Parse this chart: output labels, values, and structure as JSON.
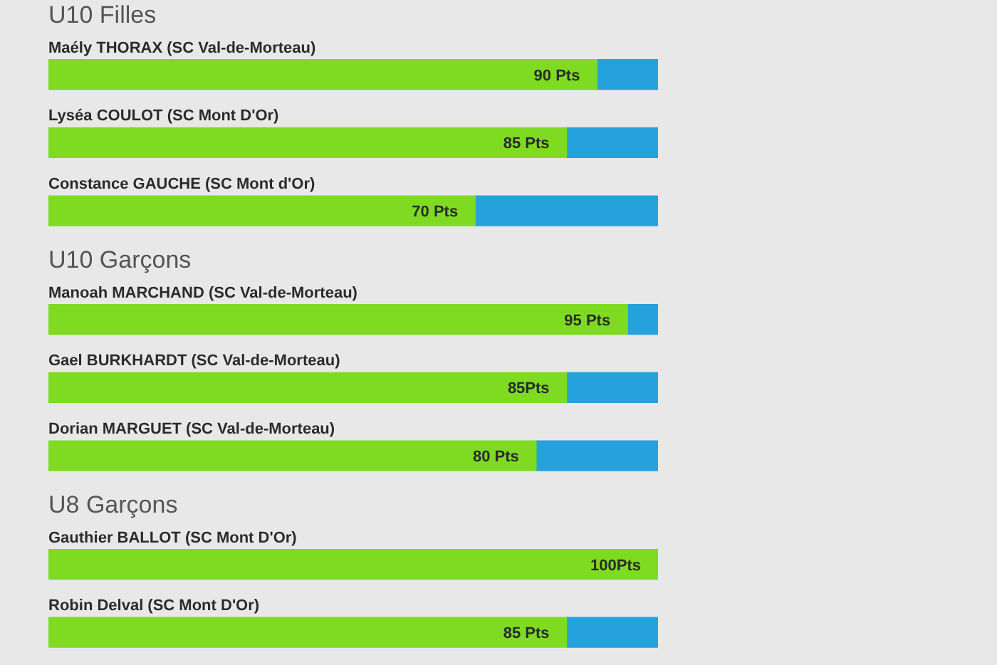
{
  "chart_data": [
    {
      "type": "bar",
      "title": "U10 Filles",
      "orientation": "horizontal",
      "stacked": true,
      "categories": [
        "Maély THORAX (SC Val-de-Morteau)",
        "Lyséa COULOT (SC Mont D'Or)",
        "Constance GAUCHE (SC Mont d'Or)"
      ],
      "series": [
        {
          "color": "#7edb22",
          "values": [
            90,
            85,
            70
          ],
          "value_labels": [
            "90 Pts",
            "85 Pts",
            "70 Pts"
          ]
        },
        {
          "color": "#25a1dc",
          "values": [
            10,
            15,
            30
          ]
        }
      ],
      "xlim": [
        0,
        100
      ],
      "tick_labels": "y"
    },
    {
      "type": "bar",
      "title": "U10 Garçons",
      "orientation": "horizontal",
      "stacked": true,
      "categories": [
        "Manoah MARCHAND (SC Val-de-Morteau)",
        "Gael BURKHARDT (SC Val-de-Morteau)",
        "Dorian MARGUET (SC Val-de-Morteau)"
      ],
      "series": [
        {
          "color": "#7edb22",
          "values": [
            95,
            85,
            80
          ],
          "value_labels": [
            "95 Pts",
            "85Pts",
            "80 Pts"
          ]
        },
        {
          "color": "#25a1dc",
          "values": [
            5,
            15,
            20
          ]
        }
      ],
      "xlim": [
        0,
        100
      ],
      "tick_labels": "y"
    },
    {
      "type": "bar",
      "title": "U8 Garçons",
      "orientation": "horizontal",
      "stacked": true,
      "categories": [
        "Gauthier BALLOT (SC Mont D'Or)",
        "Robin Delval (SC Mont D'Or)"
      ],
      "series": [
        {
          "color": "#7edb22",
          "values": [
            100,
            85
          ],
          "value_labels": [
            "100Pts",
            "85 Pts"
          ]
        },
        {
          "color": "#25a1dc",
          "values": [
            0,
            15
          ]
        }
      ],
      "xlim": [
        0,
        100
      ],
      "tick_labels": "y"
    }
  ]
}
